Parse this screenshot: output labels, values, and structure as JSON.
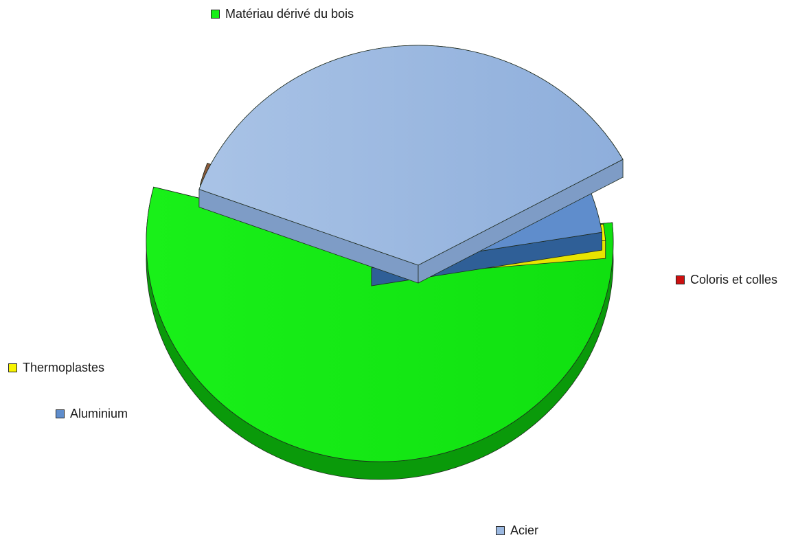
{
  "chart_data": {
    "type": "pie",
    "title": "",
    "style": "3d-exploded",
    "categories": [
      "Matériau dérivé du bois",
      "Coloris et colles",
      "Acier",
      "Aluminium",
      "Thermoplastes"
    ],
    "values": [
      55.4,
      1.6,
      36.4,
      5.4,
      1.2
    ],
    "unit": "%",
    "colors": [
      "#16ee16",
      "#cc1010",
      "#9bb8e0",
      "#5f8dcc",
      "#f8f400"
    ],
    "legend": {
      "items": [
        {
          "label": "Matériau dérivé du bois",
          "color": "#16ee16"
        },
        {
          "label": "Coloris et colles",
          "color": "#cc1010"
        },
        {
          "label": "Acier",
          "color": "#9bb8e0"
        },
        {
          "label": "Aluminium",
          "color": "#5f8dcc"
        },
        {
          "label": "Thermoplastes",
          "color": "#f8f400"
        }
      ]
    }
  }
}
